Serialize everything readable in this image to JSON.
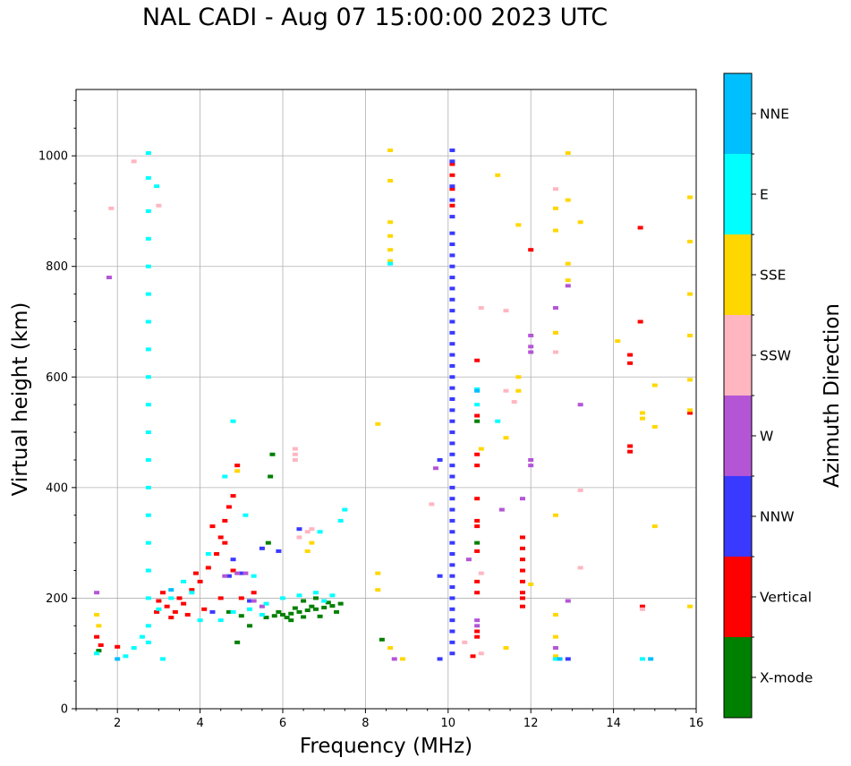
{
  "chart_data": {
    "type": "scatter",
    "title": "NAL CADI - Aug 07 15:00:00 2023 UTC",
    "xlabel": "Frequency (MHz)",
    "ylabel": "Virtual height (km)",
    "xlim": [
      1,
      16
    ],
    "ylim": [
      0,
      1120
    ],
    "x_ticks": [
      2,
      4,
      6,
      8,
      10,
      12,
      14,
      16
    ],
    "y_ticks": [
      0,
      200,
      400,
      600,
      800,
      1000
    ],
    "grid": true,
    "colorbar": {
      "label": "Azimuth Direction",
      "categories": [
        "X-mode",
        "Vertical",
        "NNW",
        "W",
        "SSW",
        "SSE",
        "E",
        "NNE"
      ],
      "colors": {
        "X-mode": "#008000",
        "Vertical": "#ff0000",
        "NNW": "#3a3aff",
        "W": "#b455d6",
        "SSW": "#ffb6c1",
        "SSE": "#ffd700",
        "E": "#00ffff",
        "NNE": "#00bfff"
      }
    },
    "series": [
      {
        "name": "X-mode",
        "points": [
          [
            5.6,
            165
          ],
          [
            5.8,
            168
          ],
          [
            6.0,
            170
          ],
          [
            6.2,
            172
          ],
          [
            6.4,
            175
          ],
          [
            6.6,
            178
          ],
          [
            6.8,
            180
          ],
          [
            7.0,
            183
          ],
          [
            7.2,
            186
          ],
          [
            7.4,
            190
          ],
          [
            6.1,
            165
          ],
          [
            6.5,
            166
          ],
          [
            6.9,
            167
          ],
          [
            7.3,
            175
          ],
          [
            6.3,
            182
          ],
          [
            6.7,
            185
          ],
          [
            7.1,
            192
          ],
          [
            6.5,
            195
          ],
          [
            5.9,
            175
          ],
          [
            6.2,
            160
          ],
          [
            6.8,
            200
          ],
          [
            1.55,
            105
          ],
          [
            4.9,
            120
          ],
          [
            5.2,
            150
          ],
          [
            5.75,
            460
          ],
          [
            5.7,
            420
          ],
          [
            5.65,
            300
          ],
          [
            10.7,
            300
          ],
          [
            10.7,
            520
          ],
          [
            8.4,
            125
          ],
          [
            5.0,
            168
          ],
          [
            4.7,
            175
          ]
        ]
      },
      {
        "name": "Vertical",
        "points": [
          [
            3.0,
            195
          ],
          [
            3.2,
            185
          ],
          [
            3.4,
            175
          ],
          [
            3.6,
            190
          ],
          [
            3.8,
            215
          ],
          [
            4.0,
            230
          ],
          [
            4.2,
            255
          ],
          [
            4.4,
            280
          ],
          [
            4.5,
            310
          ],
          [
            4.6,
            340
          ],
          [
            4.7,
            365
          ],
          [
            4.8,
            385
          ],
          [
            3.5,
            200
          ],
          [
            3.9,
            245
          ],
          [
            4.3,
            330
          ],
          [
            4.1,
            180
          ],
          [
            3.7,
            170
          ],
          [
            4.5,
            200
          ],
          [
            5.0,
            200
          ],
          [
            5.3,
            210
          ],
          [
            2.95,
            175
          ],
          [
            3.3,
            165
          ],
          [
            4.8,
            250
          ],
          [
            4.9,
            440
          ],
          [
            4.6,
            300
          ],
          [
            3.1,
            210
          ],
          [
            10.7,
            630
          ],
          [
            10.7,
            530
          ],
          [
            10.7,
            460
          ],
          [
            10.7,
            440
          ],
          [
            10.7,
            380
          ],
          [
            10.7,
            340
          ],
          [
            10.7,
            330
          ],
          [
            10.7,
            285
          ],
          [
            10.7,
            230
          ],
          [
            10.7,
            210
          ],
          [
            10.7,
            140
          ],
          [
            10.7,
            130
          ],
          [
            10.1,
            985
          ],
          [
            10.1,
            965
          ],
          [
            10.1,
            940
          ],
          [
            10.1,
            910
          ],
          [
            11.8,
            310
          ],
          [
            11.8,
            290
          ],
          [
            11.8,
            270
          ],
          [
            11.8,
            250
          ],
          [
            11.8,
            230
          ],
          [
            11.8,
            210
          ],
          [
            11.8,
            200
          ],
          [
            11.8,
            185
          ],
          [
            12.0,
            830
          ],
          [
            14.4,
            640
          ],
          [
            14.4,
            625
          ],
          [
            14.65,
            870
          ],
          [
            14.65,
            700
          ],
          [
            14.4,
            475
          ],
          [
            14.4,
            465
          ],
          [
            14.7,
            185
          ],
          [
            15.85,
            535
          ],
          [
            10.6,
            95
          ],
          [
            1.6,
            115
          ],
          [
            1.5,
            130
          ],
          [
            2.0,
            112
          ]
        ]
      },
      {
        "name": "NNW",
        "points": [
          [
            10.1,
            1010
          ],
          [
            10.1,
            990
          ],
          [
            10.1,
            945
          ],
          [
            10.1,
            920
          ],
          [
            10.1,
            890
          ],
          [
            10.1,
            860
          ],
          [
            10.1,
            840
          ],
          [
            10.1,
            820
          ],
          [
            10.1,
            800
          ],
          [
            10.1,
            780
          ],
          [
            10.1,
            760
          ],
          [
            10.1,
            740
          ],
          [
            10.1,
            720
          ],
          [
            10.1,
            700
          ],
          [
            10.1,
            680
          ],
          [
            10.1,
            660
          ],
          [
            10.1,
            640
          ],
          [
            10.1,
            620
          ],
          [
            10.1,
            600
          ],
          [
            10.1,
            580
          ],
          [
            10.1,
            560
          ],
          [
            10.1,
            540
          ],
          [
            10.1,
            520
          ],
          [
            10.1,
            500
          ],
          [
            10.1,
            480
          ],
          [
            10.1,
            460
          ],
          [
            10.1,
            440
          ],
          [
            10.1,
            420
          ],
          [
            10.1,
            400
          ],
          [
            10.1,
            380
          ],
          [
            10.1,
            360
          ],
          [
            10.1,
            340
          ],
          [
            10.1,
            320
          ],
          [
            10.1,
            300
          ],
          [
            10.1,
            280
          ],
          [
            10.1,
            260
          ],
          [
            10.1,
            240
          ],
          [
            10.1,
            220
          ],
          [
            10.1,
            200
          ],
          [
            10.1,
            180
          ],
          [
            10.1,
            160
          ],
          [
            10.1,
            140
          ],
          [
            10.1,
            120
          ],
          [
            10.1,
            100
          ],
          [
            5.5,
            290
          ],
          [
            5.0,
            245
          ],
          [
            4.7,
            240
          ],
          [
            4.8,
            270
          ],
          [
            6.4,
            325
          ],
          [
            5.9,
            285
          ],
          [
            9.8,
            450
          ],
          [
            9.8,
            240
          ],
          [
            9.8,
            90
          ],
          [
            12.9,
            90
          ],
          [
            4.3,
            175
          ],
          [
            5.2,
            195
          ]
        ]
      },
      {
        "name": "W",
        "points": [
          [
            4.6,
            240
          ],
          [
            4.9,
            245
          ],
          [
            5.1,
            245
          ],
          [
            5.5,
            185
          ],
          [
            5.3,
            195
          ],
          [
            10.7,
            160
          ],
          [
            10.7,
            150
          ],
          [
            1.5,
            210
          ],
          [
            1.8,
            780
          ],
          [
            11.3,
            360
          ],
          [
            12.0,
            675
          ],
          [
            12.0,
            655
          ],
          [
            12.0,
            645
          ],
          [
            12.0,
            450
          ],
          [
            12.0,
            440
          ],
          [
            12.6,
            725
          ],
          [
            12.9,
            765
          ],
          [
            13.2,
            550
          ],
          [
            12.9,
            195
          ],
          [
            12.6,
            110
          ],
          [
            11.8,
            380
          ],
          [
            8.7,
            90
          ],
          [
            9.7,
            435
          ],
          [
            10.5,
            270
          ]
        ]
      },
      {
        "name": "SSW",
        "points": [
          [
            6.3,
            470
          ],
          [
            6.3,
            460
          ],
          [
            6.3,
            450
          ],
          [
            6.7,
            325
          ],
          [
            6.6,
            320
          ],
          [
            6.4,
            310
          ],
          [
            12.6,
            940
          ],
          [
            12.6,
            645
          ],
          [
            12.6,
            680
          ],
          [
            13.2,
            395
          ],
          [
            13.2,
            255
          ],
          [
            14.7,
            180
          ],
          [
            10.4,
            120
          ],
          [
            11.4,
            575
          ],
          [
            11.4,
            720
          ],
          [
            10.8,
            725
          ],
          [
            1.85,
            905
          ],
          [
            2.4,
            990
          ],
          [
            3.0,
            910
          ],
          [
            9.6,
            370
          ],
          [
            10.8,
            245
          ],
          [
            10.8,
            100
          ],
          [
            11.6,
            555
          ]
        ]
      },
      {
        "name": "SSE",
        "points": [
          [
            8.6,
            1010
          ],
          [
            8.6,
            955
          ],
          [
            8.6,
            880
          ],
          [
            8.6,
            855
          ],
          [
            8.6,
            830
          ],
          [
            8.6,
            810
          ],
          [
            8.3,
            515
          ],
          [
            8.3,
            245
          ],
          [
            8.3,
            215
          ],
          [
            8.6,
            110
          ],
          [
            8.9,
            90
          ],
          [
            11.2,
            965
          ],
          [
            11.7,
            875
          ],
          [
            11.4,
            490
          ],
          [
            11.7,
            600
          ],
          [
            11.7,
            575
          ],
          [
            12.6,
            905
          ],
          [
            12.6,
            865
          ],
          [
            12.6,
            680
          ],
          [
            12.6,
            350
          ],
          [
            12.6,
            170
          ],
          [
            12.6,
            130
          ],
          [
            12.6,
            95
          ],
          [
            12.9,
            1005
          ],
          [
            12.9,
            920
          ],
          [
            12.9,
            805
          ],
          [
            12.9,
            775
          ],
          [
            13.2,
            880
          ],
          [
            14.1,
            665
          ],
          [
            14.7,
            535
          ],
          [
            14.7,
            525
          ],
          [
            15.0,
            585
          ],
          [
            15.0,
            510
          ],
          [
            15.0,
            330
          ],
          [
            15.85,
            925
          ],
          [
            15.85,
            845
          ],
          [
            15.85,
            750
          ],
          [
            15.85,
            675
          ],
          [
            15.85,
            595
          ],
          [
            15.85,
            540
          ],
          [
            15.85,
            185
          ],
          [
            6.6,
            285
          ],
          [
            6.7,
            300
          ],
          [
            4.9,
            430
          ],
          [
            1.5,
            170
          ],
          [
            1.55,
            150
          ],
          [
            10.8,
            470
          ],
          [
            11.4,
            110
          ],
          [
            12.0,
            225
          ]
        ]
      },
      {
        "name": "E",
        "points": [
          [
            2.75,
            1005
          ],
          [
            2.75,
            960
          ],
          [
            2.75,
            900
          ],
          [
            2.75,
            850
          ],
          [
            2.75,
            800
          ],
          [
            2.75,
            750
          ],
          [
            2.75,
            700
          ],
          [
            2.75,
            650
          ],
          [
            2.75,
            600
          ],
          [
            2.75,
            550
          ],
          [
            2.75,
            500
          ],
          [
            2.75,
            450
          ],
          [
            2.75,
            400
          ],
          [
            2.75,
            350
          ],
          [
            2.75,
            300
          ],
          [
            2.75,
            250
          ],
          [
            2.75,
            200
          ],
          [
            2.75,
            150
          ],
          [
            2.75,
            120
          ],
          [
            2.95,
            945
          ],
          [
            3.0,
            180
          ],
          [
            3.3,
            200
          ],
          [
            3.6,
            230
          ],
          [
            4.0,
            160
          ],
          [
            4.5,
            160
          ],
          [
            4.8,
            175
          ],
          [
            5.2,
            180
          ],
          [
            5.6,
            190
          ],
          [
            6.0,
            200
          ],
          [
            6.4,
            205
          ],
          [
            6.8,
            210
          ],
          [
            7.2,
            205
          ],
          [
            7.0,
            195
          ],
          [
            7.4,
            340
          ],
          [
            7.5,
            360
          ],
          [
            6.9,
            320
          ],
          [
            4.6,
            420
          ],
          [
            4.8,
            520
          ],
          [
            5.1,
            350
          ],
          [
            5.3,
            240
          ],
          [
            4.2,
            280
          ],
          [
            3.8,
            210
          ],
          [
            5.5,
            170
          ],
          [
            2.6,
            130
          ],
          [
            2.4,
            110
          ],
          [
            2.2,
            95
          ],
          [
            3.1,
            90
          ],
          [
            8.6,
            805
          ],
          [
            10.7,
            578
          ],
          [
            10.7,
            550
          ],
          [
            11.2,
            520
          ],
          [
            14.7,
            90
          ],
          [
            12.6,
            90
          ],
          [
            1.5,
            100
          ]
        ]
      },
      {
        "name": "NNE",
        "points": [
          [
            10.7,
            575
          ],
          [
            14.9,
            90
          ],
          [
            12.7,
            90
          ],
          [
            2.0,
            90
          ],
          [
            3.3,
            215
          ]
        ]
      }
    ]
  }
}
